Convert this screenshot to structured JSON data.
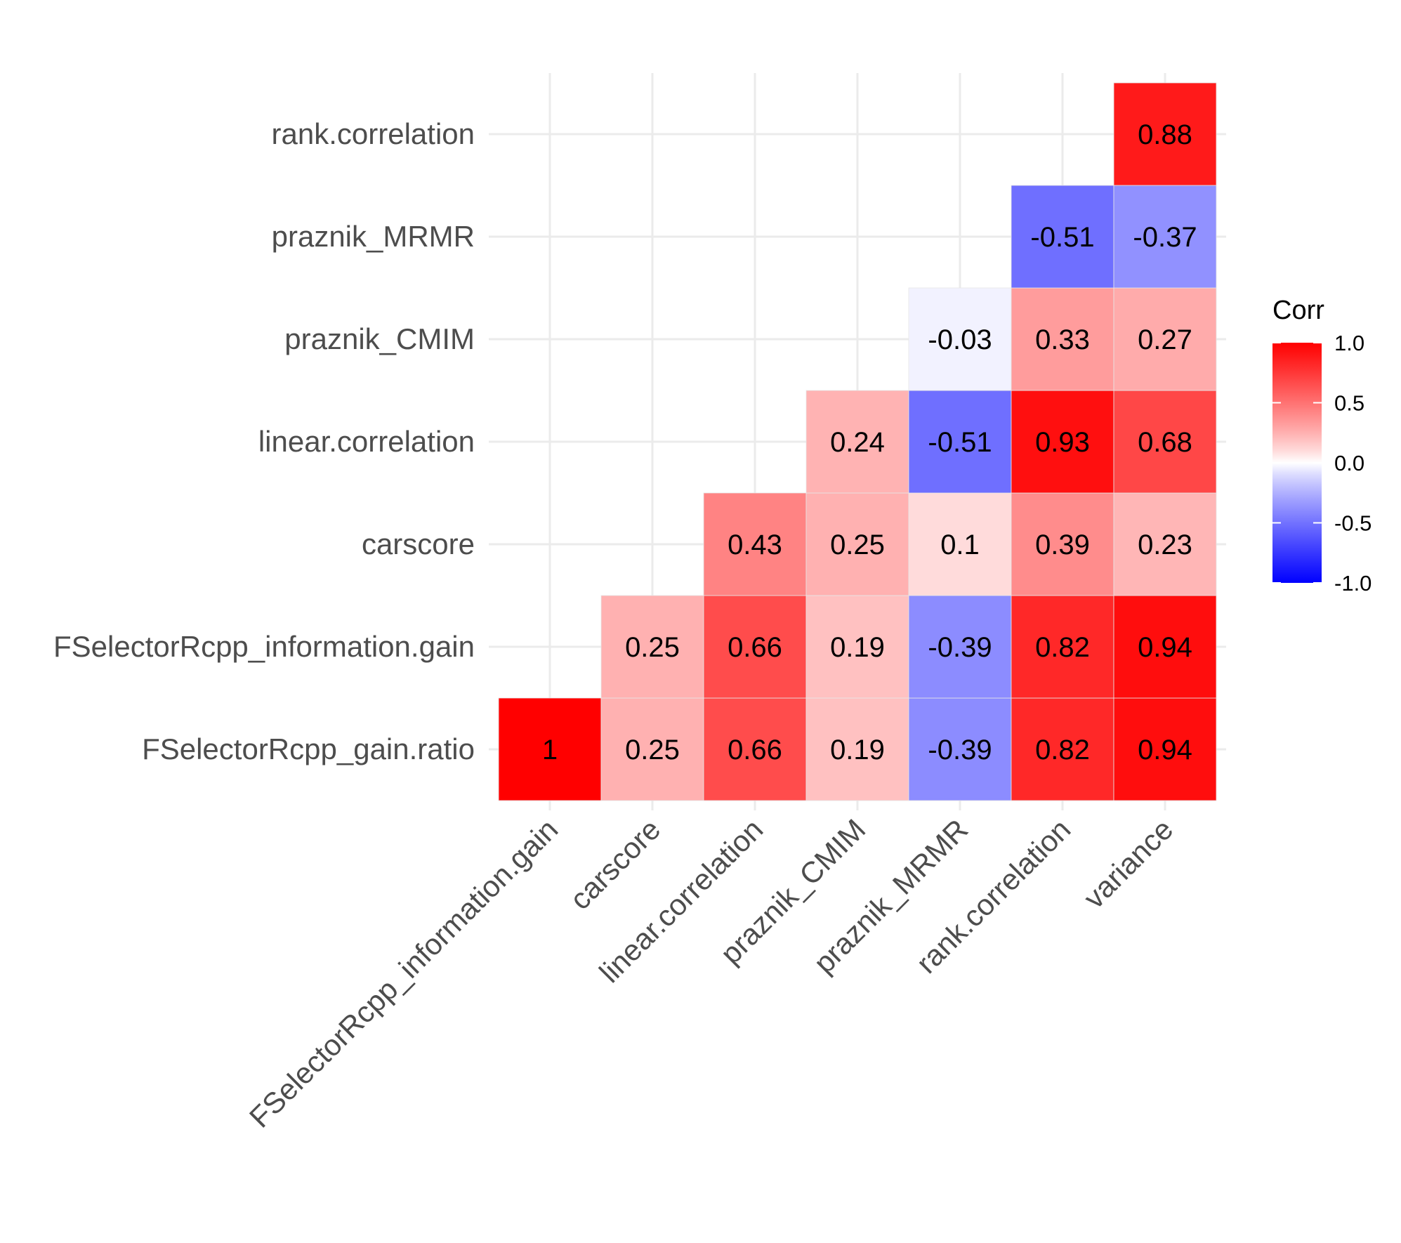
{
  "chart_data": {
    "type": "heatmap",
    "title": "",
    "xlabel": "",
    "ylabel": "",
    "x_categories": [
      "FSelectorRcpp_information.gain",
      "carscore",
      "linear.correlation",
      "praznik_CMIM",
      "praznik_MRMR",
      "rank.correlation",
      "variance"
    ],
    "y_categories": [
      "FSelectorRcpp_gain.ratio",
      "FSelectorRcpp_information.gain",
      "carscore",
      "linear.correlation",
      "praznik_CMIM",
      "praznik_MRMR",
      "rank.correlation"
    ],
    "cells": [
      {
        "x": "FSelectorRcpp_information.gain",
        "y": "FSelectorRcpp_gain.ratio",
        "value": 1,
        "label": "1"
      },
      {
        "x": "carscore",
        "y": "FSelectorRcpp_gain.ratio",
        "value": 0.25,
        "label": "0.25"
      },
      {
        "x": "linear.correlation",
        "y": "FSelectorRcpp_gain.ratio",
        "value": 0.66,
        "label": "0.66"
      },
      {
        "x": "praznik_CMIM",
        "y": "FSelectorRcpp_gain.ratio",
        "value": 0.19,
        "label": "0.19"
      },
      {
        "x": "praznik_MRMR",
        "y": "FSelectorRcpp_gain.ratio",
        "value": -0.39,
        "label": "-0.39"
      },
      {
        "x": "rank.correlation",
        "y": "FSelectorRcpp_gain.ratio",
        "value": 0.82,
        "label": "0.82"
      },
      {
        "x": "variance",
        "y": "FSelectorRcpp_gain.ratio",
        "value": 0.94,
        "label": "0.94"
      },
      {
        "x": "carscore",
        "y": "FSelectorRcpp_information.gain",
        "value": 0.25,
        "label": "0.25"
      },
      {
        "x": "linear.correlation",
        "y": "FSelectorRcpp_information.gain",
        "value": 0.66,
        "label": "0.66"
      },
      {
        "x": "praznik_CMIM",
        "y": "FSelectorRcpp_information.gain",
        "value": 0.19,
        "label": "0.19"
      },
      {
        "x": "praznik_MRMR",
        "y": "FSelectorRcpp_information.gain",
        "value": -0.39,
        "label": "-0.39"
      },
      {
        "x": "rank.correlation",
        "y": "FSelectorRcpp_information.gain",
        "value": 0.82,
        "label": "0.82"
      },
      {
        "x": "variance",
        "y": "FSelectorRcpp_information.gain",
        "value": 0.94,
        "label": "0.94"
      },
      {
        "x": "linear.correlation",
        "y": "carscore",
        "value": 0.43,
        "label": "0.43"
      },
      {
        "x": "praznik_CMIM",
        "y": "carscore",
        "value": 0.25,
        "label": "0.25"
      },
      {
        "x": "praznik_MRMR",
        "y": "carscore",
        "value": 0.1,
        "label": "0.1"
      },
      {
        "x": "rank.correlation",
        "y": "carscore",
        "value": 0.39,
        "label": "0.39"
      },
      {
        "x": "variance",
        "y": "carscore",
        "value": 0.23,
        "label": "0.23"
      },
      {
        "x": "praznik_CMIM",
        "y": "linear.correlation",
        "value": 0.24,
        "label": "0.24"
      },
      {
        "x": "praznik_MRMR",
        "y": "linear.correlation",
        "value": -0.51,
        "label": "-0.51"
      },
      {
        "x": "rank.correlation",
        "y": "linear.correlation",
        "value": 0.93,
        "label": "0.93"
      },
      {
        "x": "variance",
        "y": "linear.correlation",
        "value": 0.68,
        "label": "0.68"
      },
      {
        "x": "praznik_MRMR",
        "y": "praznik_CMIM",
        "value": -0.03,
        "label": "-0.03"
      },
      {
        "x": "rank.correlation",
        "y": "praznik_CMIM",
        "value": 0.33,
        "label": "0.33"
      },
      {
        "x": "variance",
        "y": "praznik_CMIM",
        "value": 0.27,
        "label": "0.27"
      },
      {
        "x": "rank.correlation",
        "y": "praznik_MRMR",
        "value": -0.51,
        "label": "-0.51"
      },
      {
        "x": "variance",
        "y": "praznik_MRMR",
        "value": -0.37,
        "label": "-0.37"
      },
      {
        "x": "variance",
        "y": "rank.correlation",
        "value": 0.88,
        "label": "0.88"
      }
    ],
    "legend": {
      "title": "Corr",
      "ticks": [
        "1.0",
        "0.5",
        "0.0",
        "-0.5",
        "-1.0"
      ],
      "tick_values": [
        1.0,
        0.5,
        0.0,
        -0.5,
        -1.0
      ],
      "range": [
        -1,
        1
      ],
      "placement": "right"
    },
    "colors": {
      "high": "#FF0000",
      "mid": "#FFFFFF",
      "low": "#0000FF",
      "grid": "#EBEBEB",
      "axis_text": "#4D4D4D",
      "cell_text": "#000000",
      "tile_border": "#E6E6E6"
    },
    "grid": true
  }
}
